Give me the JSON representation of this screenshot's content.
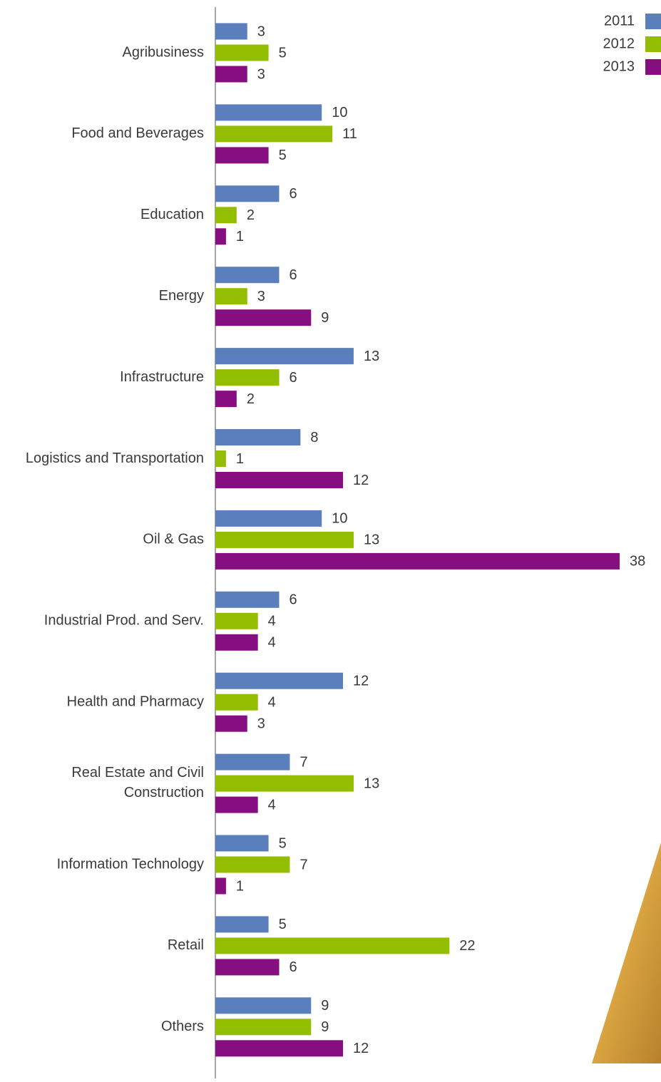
{
  "chart_data": {
    "type": "hbar",
    "categories": [
      "Agribusiness",
      "Food and Beverages",
      "Education",
      "Energy",
      "Infrastructure",
      "Logistics and Transportation",
      "Oil & Gas",
      "Industrial Prod. and Serv.",
      "Health and Pharmacy",
      [
        "Real Estate and Civil",
        "Construction"
      ],
      "Information Technology",
      "Retail",
      "Others"
    ],
    "series": [
      {
        "name": "2011",
        "color": "#5b7fbd",
        "values": [
          3,
          10,
          6,
          6,
          13,
          8,
          10,
          6,
          12,
          7,
          5,
          5,
          9
        ]
      },
      {
        "name": "2012",
        "color": "#92bd00",
        "values": [
          5,
          11,
          2,
          3,
          6,
          1,
          13,
          4,
          4,
          13,
          7,
          22,
          9
        ]
      },
      {
        "name": "2013",
        "color": "#870e80",
        "values": [
          3,
          5,
          1,
          9,
          2,
          12,
          38,
          4,
          3,
          4,
          1,
          6,
          12
        ]
      }
    ],
    "legend": "top-right"
  }
}
